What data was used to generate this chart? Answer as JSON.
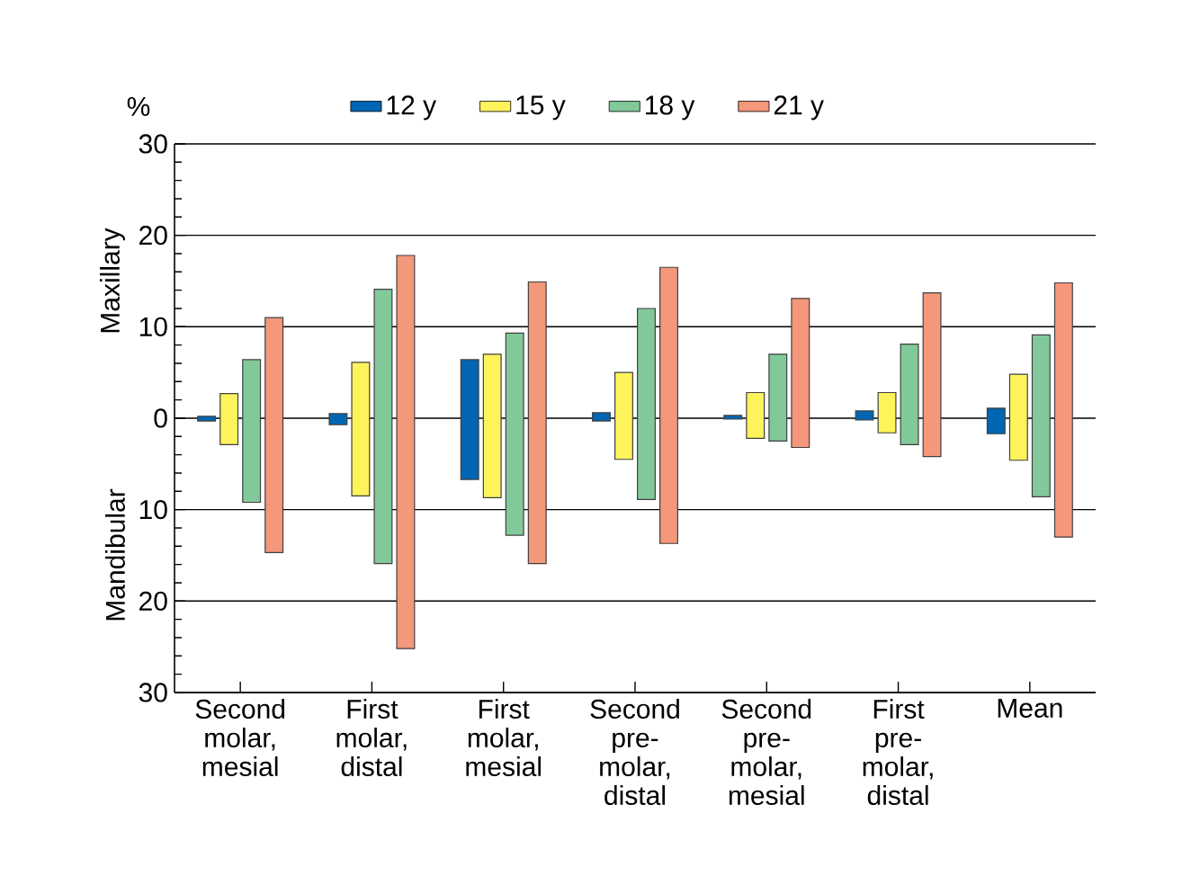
{
  "chart_data": {
    "type": "bar",
    "ylabel": "%",
    "annotations": [
      "Maxillary",
      "Mandibular"
    ],
    "categories": [
      "Second molar, mesial",
      "First molar, distal",
      "First molar, mesial",
      "Second pre-molar, distal",
      "Second pre-molar, mesial",
      "First pre-molar, distal",
      "Mean"
    ],
    "series": [
      {
        "name": "12 y",
        "color": "#0066b3",
        "base": [
          -0.3,
          -0.7,
          -6.7,
          -0.3,
          -0.1,
          -0.2,
          -1.7
        ],
        "values": [
          0.5,
          1.2,
          13.1,
          0.9,
          0.4,
          1.0,
          2.8
        ]
      },
      {
        "name": "15 y",
        "color": "#fff35c",
        "base": [
          -2.9,
          -8.5,
          -8.7,
          -4.5,
          -2.2,
          -1.6,
          -4.6
        ],
        "values": [
          5.6,
          14.6,
          15.7,
          9.5,
          5.0,
          4.4,
          9.4
        ]
      },
      {
        "name": "18 y",
        "color": "#82c99a",
        "base": [
          -9.2,
          -15.9,
          -12.8,
          -8.9,
          -2.5,
          -2.9,
          -8.6
        ],
        "values": [
          15.6,
          30.0,
          22.1,
          20.9,
          9.5,
          11.0,
          17.7
        ]
      },
      {
        "name": "21 y",
        "color": "#f4977a",
        "base": [
          -14.7,
          -25.2,
          -15.9,
          -13.7,
          -3.2,
          -4.2,
          -13.0
        ],
        "values": [
          25.7,
          43.0,
          30.8,
          30.2,
          16.3,
          17.9,
          27.8
        ]
      }
    ],
    "ylim": [
      -30,
      30
    ],
    "yticks": [
      {
        "value": -30,
        "label": "30"
      },
      {
        "value": -20,
        "label": "20"
      },
      {
        "value": -10,
        "label": "10"
      },
      0,
      10,
      20,
      30
    ],
    "grid": "y",
    "legend": "top"
  }
}
